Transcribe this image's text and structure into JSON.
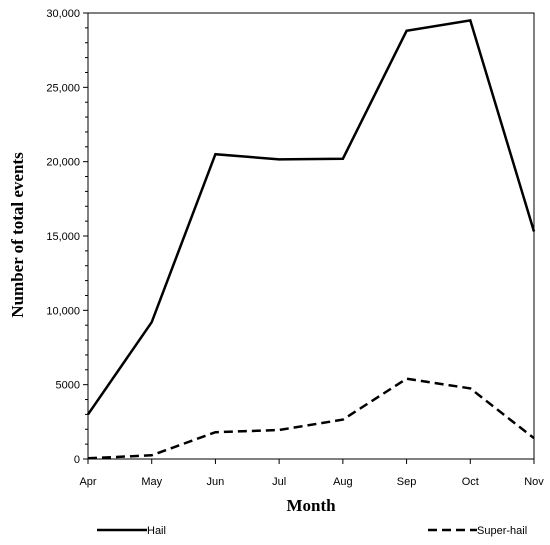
{
  "chart_data": {
    "type": "line",
    "xlabel": "Month",
    "ylabel": "Number of total events",
    "categories": [
      "Apr",
      "May",
      "Jun",
      "Jul",
      "Aug",
      "Sep",
      "Oct",
      "Nov"
    ],
    "ylim": [
      0,
      30000
    ],
    "yticks": [
      0,
      5000,
      10000,
      15000,
      20000,
      25000,
      30000
    ],
    "ytick_labels": [
      "0",
      "5000",
      "10,000",
      "15,000",
      "20,000",
      "25,000",
      "30,000"
    ],
    "grid": false,
    "legend_position": "bottom",
    "series": [
      {
        "name": "Hail",
        "style": "solid",
        "color": "#000000",
        "values": [
          3000,
          9200,
          20500,
          20150,
          20200,
          28800,
          29500,
          15300
        ]
      },
      {
        "name": "Super-hail",
        "style": "dashed",
        "color": "#000000",
        "values": [
          50,
          250,
          1800,
          1950,
          2650,
          5400,
          4750,
          1400
        ]
      }
    ]
  }
}
